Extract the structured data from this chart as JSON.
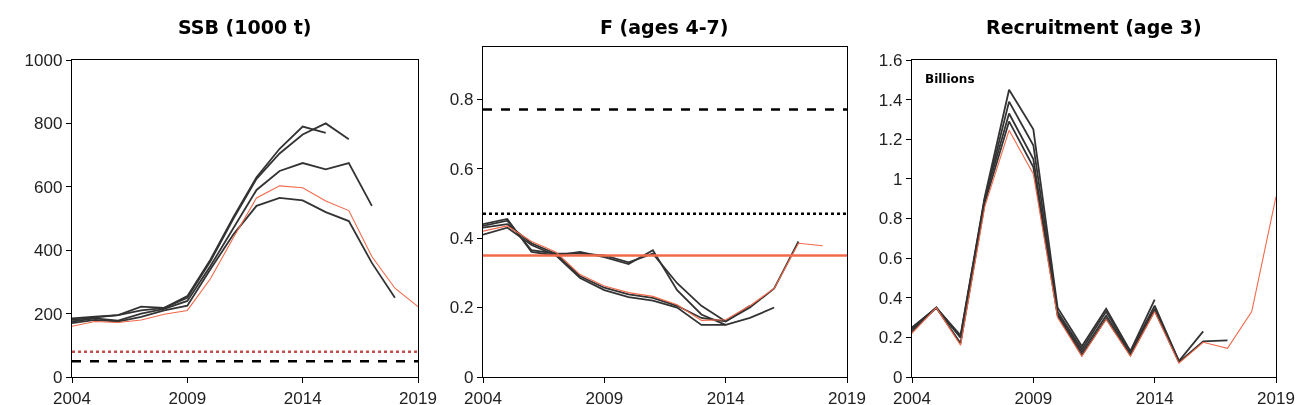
{
  "chart_data": [
    {
      "type": "line",
      "title": "SSB (1000 t)",
      "x": [
        2004,
        2005,
        2006,
        2007,
        2008,
        2009,
        2010,
        2011,
        2012,
        2013,
        2014,
        2015,
        2016,
        2017,
        2018,
        2019
      ],
      "xlim": [
        2004,
        2019
      ],
      "xticks": [
        2004,
        2009,
        2014,
        2019
      ],
      "ylim": [
        0,
        1000
      ],
      "yticks": [
        0,
        200,
        400,
        600,
        800,
        1000
      ],
      "line_style": "solid",
      "marker": "none",
      "series": [
        {
          "color": "#333333",
          "x": [
            2004,
            2005,
            2006,
            2007,
            2008,
            2009,
            2010,
            2011,
            2012,
            2013,
            2014,
            2015
          ],
          "values": [
            185,
            190,
            195,
            222,
            218,
            255,
            370,
            505,
            630,
            720,
            790,
            770
          ]
        },
        {
          "color": "#333333",
          "x": [
            2004,
            2005,
            2006,
            2007,
            2008,
            2009,
            2010,
            2011,
            2012,
            2013,
            2014,
            2015,
            2016
          ],
          "values": [
            180,
            188,
            195,
            210,
            218,
            250,
            365,
            500,
            625,
            705,
            765,
            800,
            750
          ]
        },
        {
          "color": "#333333",
          "x": [
            2004,
            2005,
            2006,
            2007,
            2008,
            2009,
            2010,
            2011,
            2012,
            2013,
            2014,
            2015,
            2016,
            2017
          ],
          "values": [
            175,
            185,
            178,
            200,
            215,
            240,
            350,
            470,
            590,
            650,
            675,
            655,
            675,
            540
          ]
        },
        {
          "color": "#333333",
          "x": [
            2004,
            2005,
            2006,
            2007,
            2008,
            2009,
            2010,
            2011,
            2012,
            2013,
            2014,
            2015,
            2016,
            2017,
            2018
          ],
          "values": [
            170,
            180,
            175,
            190,
            210,
            225,
            340,
            450,
            540,
            565,
            557,
            520,
            492,
            360,
            250
          ]
        },
        {
          "color": "#f26a4b",
          "values": [
            160,
            175,
            172,
            180,
            198,
            210,
            310,
            440,
            565,
            603,
            597,
            555,
            525,
            380,
            280,
            222
          ]
        }
      ],
      "ref_lines": [
        {
          "axis": "y",
          "value": 80,
          "color": "#c0504d",
          "line_style": "dotted"
        },
        {
          "axis": "y",
          "value": 50,
          "color": "#000000",
          "line_style": "dashed"
        }
      ]
    },
    {
      "type": "line",
      "title": "F (ages 4-7)",
      "x": [
        2004,
        2005,
        2006,
        2007,
        2008,
        2009,
        2010,
        2011,
        2012,
        2013,
        2014,
        2015,
        2016,
        2017,
        2018
      ],
      "xlim": [
        2004,
        2019
      ],
      "xticks": [
        2004,
        2009,
        2014,
        2019
      ],
      "ylim": [
        0,
        0.95
      ],
      "yticks": [
        0,
        0.2,
        0.4,
        0.6,
        0.8
      ],
      "line_style": "solid",
      "marker": "none",
      "series": [
        {
          "color": "#333333",
          "x": [
            2004,
            2005,
            2006,
            2007,
            2008,
            2009,
            2010,
            2011,
            2012,
            2013,
            2014
          ],
          "values": [
            0.44,
            0.455,
            0.36,
            0.35,
            0.36,
            0.345,
            0.325,
            0.365,
            0.25,
            0.18,
            0.15
          ]
        },
        {
          "color": "#333333",
          "x": [
            2004,
            2005,
            2006,
            2007,
            2008,
            2009,
            2010,
            2011,
            2012,
            2013,
            2014,
            2015
          ],
          "values": [
            0.435,
            0.45,
            0.365,
            0.355,
            0.355,
            0.35,
            0.33,
            0.355,
            0.27,
            0.205,
            0.16,
            0.205
          ]
        },
        {
          "color": "#333333",
          "x": [
            2004,
            2005,
            2006,
            2007,
            2008,
            2009,
            2010,
            2011,
            2012,
            2013,
            2014,
            2015,
            2016
          ],
          "values": [
            0.41,
            0.43,
            0.38,
            0.35,
            0.285,
            0.25,
            0.23,
            0.22,
            0.2,
            0.15,
            0.15,
            0.17,
            0.2
          ]
        },
        {
          "color": "#333333",
          "x": [
            2004,
            2005,
            2006,
            2007,
            2008,
            2009,
            2010,
            2011,
            2012,
            2013,
            2014,
            2015,
            2016,
            2017
          ],
          "values": [
            0.43,
            0.44,
            0.385,
            0.355,
            0.29,
            0.257,
            0.238,
            0.228,
            0.205,
            0.17,
            0.16,
            0.2,
            0.255,
            0.39
          ]
        },
        {
          "color": "#f26a4b",
          "values": [
            0.42,
            0.435,
            0.39,
            0.36,
            0.295,
            0.262,
            0.243,
            0.232,
            0.208,
            0.163,
            0.165,
            0.205,
            0.255,
            0.385,
            0.378
          ]
        }
      ],
      "ref_lines": [
        {
          "axis": "y",
          "value": 0.77,
          "color": "#000000",
          "line_style": "dashed"
        },
        {
          "axis": "y",
          "value": 0.47,
          "color": "#000000",
          "line_style": "dotted"
        },
        {
          "axis": "y",
          "value": 0.35,
          "color": "#f26a4b",
          "line_style": "solid"
        }
      ]
    },
    {
      "type": "line",
      "title": "Recruitment (age 3)",
      "annotations": [
        "Billions"
      ],
      "x": [
        2004,
        2005,
        2006,
        2007,
        2008,
        2009,
        2010,
        2011,
        2012,
        2013,
        2014,
        2015,
        2016,
        2017,
        2018,
        2019
      ],
      "xlim": [
        2004,
        2019
      ],
      "xticks": [
        2004,
        2009,
        2014,
        2019
      ],
      "ylim": [
        0,
        1.6
      ],
      "yticks": [
        0,
        0.2,
        0.4,
        0.6,
        0.8,
        1,
        1.2,
        1.4,
        1.6
      ],
      "line_style": "solid",
      "marker": "none",
      "series": [
        {
          "color": "#333333",
          "x": [
            2004,
            2005,
            2006,
            2007,
            2008,
            2009,
            2010,
            2011,
            2012,
            2013,
            2014
          ],
          "values": [
            0.25,
            0.35,
            0.21,
            0.91,
            1.45,
            1.25,
            0.35,
            0.155,
            0.345,
            0.13,
            0.39
          ]
        },
        {
          "color": "#333333",
          "x": [
            2004,
            2005,
            2006,
            2007,
            2008,
            2009,
            2010,
            2011,
            2012,
            2013,
            2014,
            2015
          ],
          "values": [
            0.245,
            0.35,
            0.2,
            0.9,
            1.39,
            1.17,
            0.33,
            0.14,
            0.33,
            0.125,
            0.36,
            0.08
          ]
        },
        {
          "color": "#333333",
          "x": [
            2004,
            2005,
            2006,
            2007,
            2008,
            2009,
            2010,
            2011,
            2012,
            2013,
            2014,
            2015,
            2016
          ],
          "values": [
            0.24,
            0.35,
            0.2,
            0.9,
            1.33,
            1.1,
            0.32,
            0.125,
            0.31,
            0.12,
            0.345,
            0.08,
            0.23
          ]
        },
        {
          "color": "#333333",
          "x": [
            2004,
            2005,
            2006,
            2007,
            2008,
            2009,
            2010,
            2011,
            2012,
            2013,
            2014,
            2015,
            2016,
            2017
          ],
          "values": [
            0.23,
            0.35,
            0.17,
            0.88,
            1.29,
            1.06,
            0.31,
            0.11,
            0.295,
            0.11,
            0.335,
            0.075,
            0.18,
            0.185
          ]
        },
        {
          "color": "#f26a4b",
          "values": [
            0.22,
            0.35,
            0.16,
            0.86,
            1.245,
            1.025,
            0.3,
            0.105,
            0.29,
            0.105,
            0.33,
            0.07,
            0.175,
            0.145,
            0.33,
            0.91
          ]
        }
      ]
    }
  ]
}
